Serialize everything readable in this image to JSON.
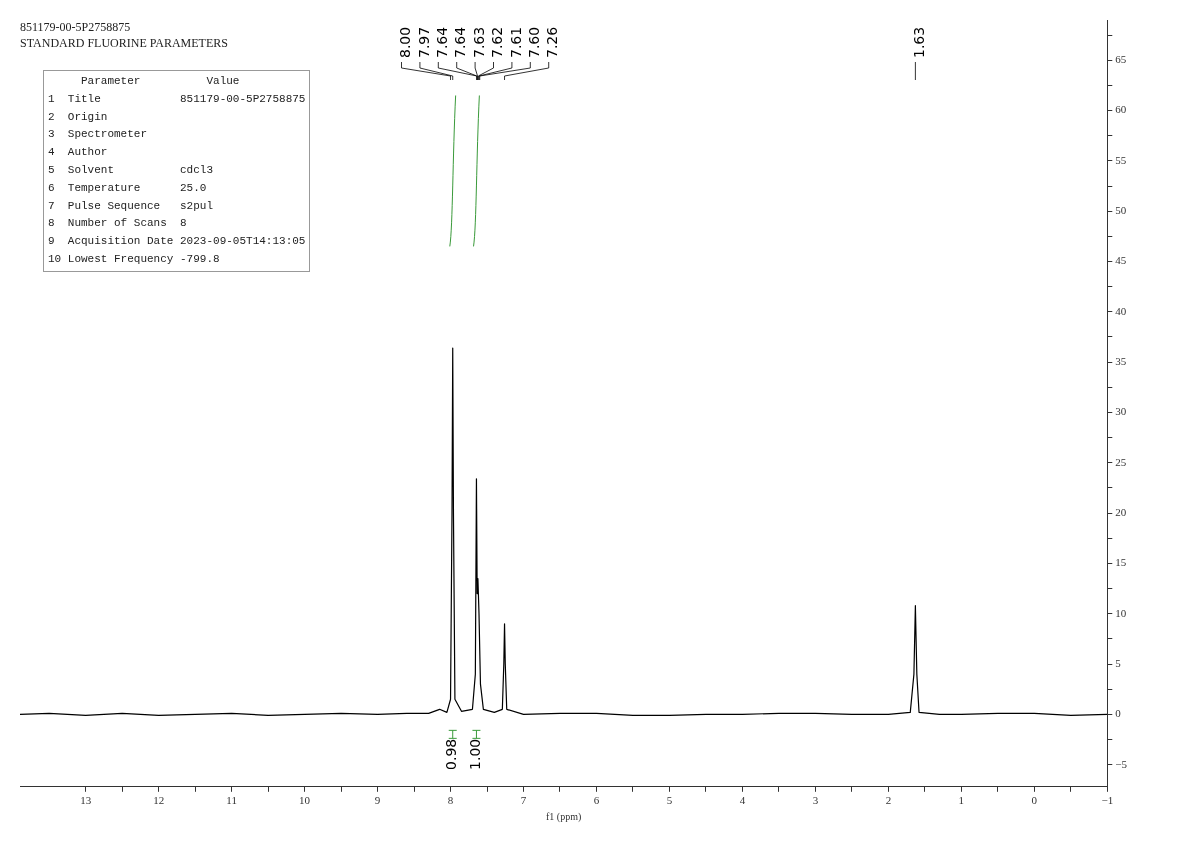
{
  "chart_data": {
    "type": "line",
    "title": "851179-00-5P2758875",
    "subtitle": "STANDARD FLUORINE PARAMETERS",
    "xlabel": "f1 (ppm)",
    "x": [
      13.9,
      13.5,
      13,
      12.5,
      12,
      11.5,
      11,
      10.5,
      10,
      9.5,
      9,
      8.6,
      8.3,
      8.15,
      8.05,
      8.0,
      7.98,
      7.97,
      7.96,
      7.94,
      7.85,
      7.7,
      7.66,
      7.645,
      7.635,
      7.625,
      7.61,
      7.59,
      7.55,
      7.4,
      7.29,
      7.27,
      7.26,
      7.25,
      7.23,
      7.0,
      6.5,
      6,
      5.5,
      5,
      4.5,
      4,
      3.5,
      3,
      2.5,
      2,
      1.7,
      1.65,
      1.63,
      1.61,
      1.58,
      1.3,
      1,
      0.5,
      0,
      -0.5,
      -1
    ],
    "series": [
      {
        "color": "#000000",
        "values": [
          0,
          0.1,
          -0.1,
          0.1,
          -0.1,
          0,
          0.1,
          -0.1,
          0,
          0.1,
          0,
          0.1,
          0.1,
          0.5,
          0.2,
          1.5,
          20,
          36.4,
          20,
          1.5,
          0.3,
          0.5,
          4,
          23.4,
          12,
          13.5,
          10,
          3,
          0.5,
          0.2,
          0.5,
          5,
          9.0,
          5,
          0.5,
          0,
          0.1,
          0.1,
          -0.1,
          -0.1,
          0,
          0,
          0.1,
          0.1,
          0,
          0,
          0.2,
          4,
          10.8,
          4,
          0.2,
          0,
          0,
          0.1,
          0.1,
          -0.1,
          0
        ]
      }
    ],
    "xlim": [
      13.9,
      -1
    ],
    "xticks": [
      13,
      {
        "value": 12.5,
        "label": null
      },
      12,
      {
        "value": 11.5,
        "label": null
      },
      11,
      {
        "value": 10.5,
        "label": null
      },
      10,
      {
        "value": 9.5,
        "label": null
      },
      9,
      {
        "value": 8.5,
        "label": null
      },
      8,
      {
        "value": 7.5,
        "label": null
      },
      7,
      {
        "value": 6.5,
        "label": null
      },
      6,
      {
        "value": 5.5,
        "label": null
      },
      5,
      {
        "value": 4.5,
        "label": null
      },
      4,
      {
        "value": 3.5,
        "label": null
      },
      3,
      {
        "value": 2.5,
        "label": null
      },
      2,
      {
        "value": 1.5,
        "label": null
      },
      1,
      {
        "value": 0.5,
        "label": null
      },
      0,
      {
        "value": -0.5,
        "label": null
      },
      -1
    ],
    "ylim": [
      -7.2,
      69
    ],
    "yticks": [
      -5,
      {
        "value": -2.5,
        "label": null
      },
      0,
      {
        "value": 2.5,
        "label": null
      },
      5,
      {
        "value": 7.5,
        "label": null
      },
      10,
      {
        "value": 12.5,
        "label": null
      },
      15,
      {
        "value": 17.5,
        "label": null
      },
      20,
      {
        "value": 22.5,
        "label": null
      },
      25,
      {
        "value": 27.5,
        "label": null
      },
      30,
      {
        "value": 32.5,
        "label": null
      },
      35,
      {
        "value": 37.5,
        "label": null
      },
      40,
      {
        "value": 42.5,
        "label": null
      },
      45,
      {
        "value": 47.5,
        "label": null
      },
      50,
      {
        "value": 52.5,
        "label": null
      },
      55,
      {
        "value": 57.5,
        "label": null
      },
      60,
      {
        "value": 62.5,
        "label": null
      },
      65,
      {
        "value": 67.5,
        "label": null
      }
    ],
    "grid": false,
    "legend": false,
    "marker": "none",
    "line_style": "solid",
    "annotations": [
      "     Parameter          Value",
      "1  Title            851179-00-5P2758875",
      "2  Origin",
      "3  Spectrometer",
      "4  Author",
      "5  Solvent          cdcl3",
      "6  Temperature      25.0",
      "7  Pulse Sequence   s2pul",
      "8  Number of Scans  8",
      "9  Acquisition Date 2023-09-05T14:13:05",
      "10 Lowest Frequency -799.8",
      {
        "text": "8.00",
        "x": 8.0
      },
      {
        "text": "7.97",
        "x": 7.97
      },
      {
        "text": "7.64",
        "x": 7.64
      },
      {
        "text": "7.64",
        "x": 7.64
      },
      {
        "text": "7.63",
        "x": 7.63
      },
      {
        "text": "7.62",
        "x": 7.62
      },
      {
        "text": "7.61",
        "x": 7.61
      },
      {
        "text": "7.60",
        "x": 7.6
      },
      {
        "text": "7.26",
        "x": 7.26
      },
      {
        "text": "1.63",
        "x": 1.63
      },
      "0.98",
      "1.00"
    ]
  }
}
